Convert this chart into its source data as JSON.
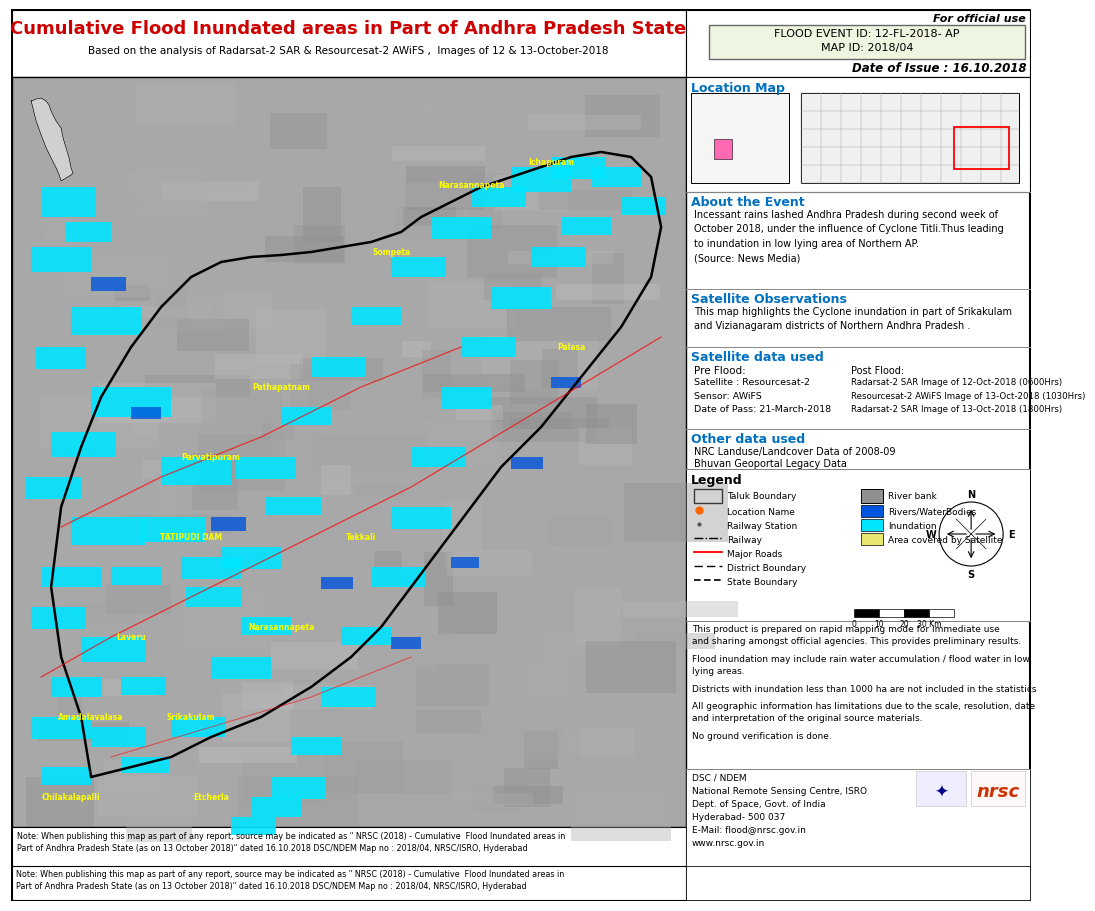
{
  "title": "Cumulative Flood Inundated areas in Part of Andhra Pradesh State",
  "subtitle": "Based on the analysis of Radarsat-2 SAR & Resourcesat-2 AWiFS ,  Images of 12 & 13-October-2018",
  "for_official": "For official use",
  "flood_event_id": "FLOOD EVENT ID: 12-FL-2018- AP",
  "map_id": "MAP ID: 2018/04",
  "date_of_issue": "Date of Issue : 16.10.2018",
  "location_map_title": "Location Map",
  "about_title": "About the Event",
  "about_text": "Incessant rains lashed Andhra Pradesh during second week of\nOctober 2018, under the influence of Cyclone Titli.Thus leading\nto inundation in low lying area of Northern AP.\n(Source: News Media)",
  "sat_obs_title": "Satellite Observations",
  "sat_obs_text": "This map highlights the Cyclone inundation in part of Srikakulam\nand Vizianagaram districts of Northern Andhra Pradesh .",
  "sat_data_title": "Satellite data used",
  "pre_flood_label": "Pre Flood:",
  "pre_flood_text": "Satellite : Resourcesat-2\nSensor: AWiFS\nDate of Pass: 21-March-2018",
  "post_flood_label": "Post Flood:",
  "post_flood_text": "Radarsat-2 SAR Image of 12-Oct-2018 (0600Hrs)\nResourcesat-2 AWiFS Image of 13-Oct-2018 (1030Hrs)\nRadarsat-2 SAR Image of 13-Oct-2018 (1800Hrs)",
  "other_data_title": "Other data used",
  "other_data_text1": "NRC Landuse/Landcover Data of 2008-09",
  "other_data_text2": "Bhuvan Geoportal Legacy Data",
  "legend_title": "Legend",
  "disclaimer1": "This product is prepared on rapid mapping mode for immediate use\nand sharing amongst official agencies. This provides preliminary results.",
  "disclaimer2": "Flood inundation may include rain water accumulation / flood water in low\nlying areas.",
  "disclaimer3": "Districts with inundation less than 1000 ha are not included in the statistics",
  "disclaimer4": "All geographic information has limitations due to the scale, resolution, date\nand interpretation of the original source materials.",
  "disclaimer5": "No ground verification is done.",
  "footer_org_line1": "DSC / NDEM",
  "footer_org_line2": "National Remote Sensing Centre, ISRO",
  "footer_org_line3": "Dept. of Space, Govt. of India",
  "footer_org_line4": "Hyderabad- 500 037",
  "footer_org_line5": "E-Mail: flood@nrsc.gov.in",
  "footer_org_line6": "www.nrsc.gov.in",
  "note": "Note: When publishing this map as part of any report, source may be indicated as \" NRSC (2018) - Cumulative  Flood Inundated areas in\nPart of Andhra Pradesh State (as on 13 October 2018)\" dated 16.10.2018 DSC/NDEM Map no : 2018/04, NRSC/ISRO, Hyderabad",
  "title_color": "#cc0000",
  "blue_heading_color": "#0070c0",
  "bg_color": "#ffffff",
  "map_bg": "#a8a8a8",
  "panel_bg": "#eef5e0",
  "border_color": "#000000"
}
